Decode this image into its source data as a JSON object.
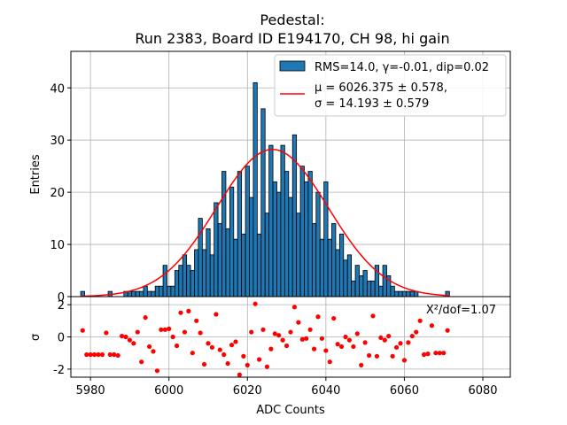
{
  "chart_data": {
    "type": "bar",
    "title_line1": "Pedestal:",
    "title_line2": "Run 2383, Board ID E194170, CH 98, hi gain",
    "xlabel": "ADC Counts",
    "ylabel_top": "Entries",
    "ylabel_bottom": "σ",
    "xlim": [
      5975,
      6087
    ],
    "ylim_top": [
      0,
      47
    ],
    "ylim_bottom": [
      -2.5,
      2.5
    ],
    "xticks": [
      "5980",
      "6000",
      "6020",
      "6040",
      "6060",
      "6080"
    ],
    "yticks_top": [
      "0",
      "10",
      "20",
      "30",
      "40"
    ],
    "yticks_bottom": [
      "2",
      "0",
      "-2"
    ],
    "grid": true,
    "legend_placement": "top-right",
    "bar_color": "#1f77b4",
    "fit_color": "#ff0000",
    "legend": {
      "hist_label": "RMS=14.0, γ=-0.01, dip=0.02",
      "fit_label_line1": "μ = 6026.375 ± 0.578,",
      "fit_label_line2": "σ = 14.193 ± 0.579"
    },
    "fit": {
      "mu": 6026.375,
      "sigma": 14.193,
      "amplitude": 28.2
    },
    "chi2_label": "X²/dof=1.07",
    "histogram": {
      "bin_width": 1,
      "x": [
        5978,
        5979,
        5980,
        5981,
        5982,
        5983,
        5984,
        5985,
        5986,
        5987,
        5988,
        5989,
        5990,
        5991,
        5992,
        5993,
        5994,
        5995,
        5996,
        5997,
        5998,
        5999,
        6000,
        6001,
        6002,
        6003,
        6004,
        6005,
        6006,
        6007,
        6008,
        6009,
        6010,
        6011,
        6012,
        6013,
        6014,
        6015,
        6016,
        6017,
        6018,
        6019,
        6020,
        6021,
        6022,
        6023,
        6024,
        6025,
        6026,
        6027,
        6028,
        6029,
        6030,
        6031,
        6032,
        6033,
        6034,
        6035,
        6036,
        6037,
        6038,
        6039,
        6040,
        6041,
        6042,
        6043,
        6044,
        6045,
        6046,
        6047,
        6048,
        6049,
        6050,
        6051,
        6052,
        6053,
        6054,
        6055,
        6056,
        6057,
        6058,
        6059,
        6060,
        6061,
        6062,
        6063,
        6064,
        6065,
        6066,
        6067,
        6068,
        6069,
        6070,
        6071
      ],
      "counts": [
        1,
        0,
        0,
        0,
        0,
        0,
        0,
        1,
        0,
        0,
        0,
        1,
        1,
        1,
        1,
        1,
        2,
        1,
        1,
        2,
        2,
        6,
        2,
        2,
        5,
        6,
        8,
        6,
        5,
        9,
        15,
        9,
        13,
        8,
        18,
        14,
        24,
        13,
        21,
        11,
        24,
        12,
        25,
        19,
        41,
        12,
        36,
        16,
        29,
        22,
        20,
        29,
        24,
        19,
        31,
        16,
        25,
        22,
        24,
        14,
        20,
        11,
        22,
        11,
        14,
        9,
        12,
        7,
        8,
        3,
        6,
        4,
        5,
        3,
        3,
        6,
        2,
        6,
        4,
        2,
        1,
        1,
        1,
        1,
        1,
        1,
        0,
        0,
        0,
        0,
        0,
        0,
        0,
        1
      ]
    },
    "residuals": {
      "x": [
        5978,
        5979,
        5980,
        5981,
        5982,
        5983,
        5984,
        5985,
        5986,
        5987,
        5988,
        5989,
        5990,
        5991,
        5992,
        5993,
        5994,
        5995,
        5996,
        5997,
        5998,
        5999,
        6000,
        6001,
        6002,
        6003,
        6004,
        6005,
        6006,
        6007,
        6008,
        6009,
        6010,
        6011,
        6012,
        6013,
        6014,
        6015,
        6016,
        6017,
        6018,
        6019,
        6020,
        6021,
        6022,
        6023,
        6024,
        6025,
        6026,
        6027,
        6028,
        6029,
        6030,
        6031,
        6032,
        6033,
        6034,
        6035,
        6036,
        6037,
        6038,
        6039,
        6040,
        6041,
        6042,
        6043,
        6044,
        6045,
        6046,
        6047,
        6048,
        6049,
        6050,
        6051,
        6052,
        6053,
        6054,
        6055,
        6056,
        6057,
        6058,
        6059,
        6060,
        6061,
        6062,
        6063,
        6064,
        6065,
        6066,
        6067,
        6068,
        6069,
        6070,
        6071
      ],
      "sigma": [
        0.4,
        -1.1,
        -1.1,
        -1.1,
        -1.1,
        -1.1,
        0.25,
        -1.1,
        -1.1,
        -1.15,
        0.05,
        0,
        -0.2,
        -0.4,
        0.3,
        -1.55,
        1.2,
        -0.6,
        -0.9,
        -2.1,
        0.45,
        0.45,
        0.5,
        0,
        -0.55,
        1.5,
        0.3,
        1.6,
        -1.0,
        1.0,
        0.25,
        -1.7,
        -0.4,
        -0.65,
        1.4,
        -0.8,
        -1.1,
        -1.65,
        -0.5,
        -0.3,
        -2.35,
        -1.2,
        -1.75,
        0.3,
        2.05,
        -1.4,
        0.45,
        -1.85,
        -0.75,
        0.2,
        0.1,
        -0.2,
        -0.55,
        0.3,
        1.85,
        0.9,
        -0.15,
        -0.1,
        0.45,
        -0.75,
        1.25,
        -0.1,
        -0.85,
        -1.55,
        1.15,
        -0.45,
        -0.6,
        0,
        -0.2,
        -0.6,
        0.2,
        -1.75,
        -0.35,
        -1.15,
        1.3,
        -1.2,
        -0.05,
        -0.2,
        0.05,
        -1.2,
        -0.65,
        -0.4,
        -1.45,
        -0.35,
        0.05,
        0.3,
        1.0,
        -1.1,
        -1.05,
        0.7,
        -1.0,
        -1.0,
        -1.0,
        0.4
      ]
    }
  }
}
